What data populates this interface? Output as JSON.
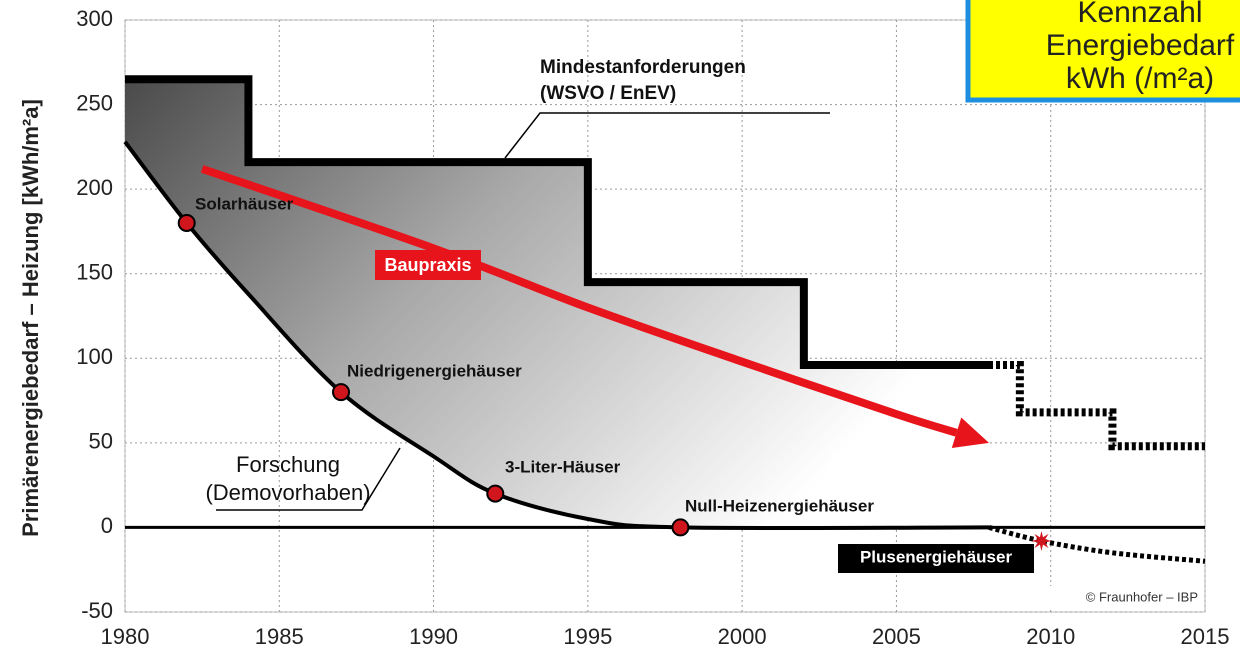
{
  "chart_data": {
    "type": "line",
    "ylabel": "Primärenergiebedarf – Heizung [kWh/m²a]",
    "xlim": [
      1980,
      2015
    ],
    "ylim": [
      -50,
      300
    ],
    "xticks": [
      1980,
      1985,
      1990,
      1995,
      2000,
      2005,
      2010,
      2015
    ],
    "yticks": [
      -50,
      0,
      50,
      100,
      150,
      200,
      250,
      300
    ],
    "grid": true,
    "series": [
      {
        "style": "step",
        "color": "#000000",
        "x": [
          1980,
          1984,
          1995,
          2002,
          2008
        ],
        "values": [
          265,
          216,
          145,
          96,
          96
        ]
      },
      {
        "style": "step-dashed",
        "color": "#000000",
        "x": [
          2008,
          2009,
          2012,
          2015
        ],
        "values": [
          96,
          68,
          48,
          48
        ]
      },
      {
        "style": "curve",
        "color": "#000000",
        "x": [
          1980,
          1982,
          1984,
          1987,
          1990,
          1992,
          1995,
          1998,
          2008
        ],
        "values": [
          228,
          180,
          138,
          80,
          42,
          20,
          5,
          0,
          0
        ]
      },
      {
        "style": "curve-dashed",
        "color": "#000000",
        "x": [
          2008,
          2009.7,
          2012,
          2015
        ],
        "values": [
          0,
          -8,
          -15,
          -20
        ]
      },
      {
        "name": "Baupraxis",
        "style": "arrow",
        "color": "#e8141b",
        "x": [
          1982.5,
          1990,
          1995,
          2000,
          2005,
          2008
        ],
        "values": [
          212,
          165,
          130,
          98,
          67,
          50
        ]
      }
    ],
    "points": {
      "labels": [
        "Solarhäuser",
        "Niedrigenergiehäuser",
        "3-Liter-Häuser",
        "Null-Heizenergiehäuser",
        "Plusenergiehäuser"
      ],
      "x": [
        1982,
        1987,
        1992,
        1998,
        2009.7
      ],
      "values": [
        180,
        80,
        20,
        0,
        -8
      ],
      "color": "#d0151c"
    },
    "annotations": {
      "mindest": [
        "Mindestanforderungen",
        "(WSVO / EnEV)"
      ],
      "forschung": [
        "Forschung",
        "(Demovorhaben)"
      ],
      "credit": "© Fraunhofer – IBP"
    },
    "box_text": [
      "Kennzahl",
      "Energiebedarf",
      "kWh (/m²a)"
    ]
  }
}
